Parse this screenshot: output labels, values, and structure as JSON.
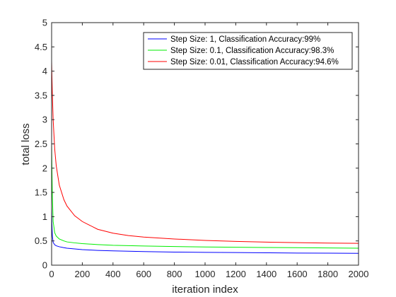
{
  "chart_data": {
    "type": "line",
    "title": "",
    "xlabel": "iteration index",
    "ylabel": "total loss",
    "xlim": [
      0,
      2000
    ],
    "ylim": [
      0,
      5
    ],
    "xticks": [
      0,
      200,
      400,
      600,
      800,
      1000,
      1200,
      1400,
      1600,
      1800,
      2000
    ],
    "yticks": [
      0,
      0.5,
      1,
      1.5,
      2,
      2.5,
      3,
      3.5,
      4,
      4.5,
      5
    ],
    "ytick_labels": [
      "0",
      "0.5",
      "1",
      "1.5",
      "2",
      "2.5",
      "3",
      "3.5",
      "4",
      "4.5",
      "5"
    ],
    "grid": false,
    "legend_position": "top-right",
    "series": [
      {
        "name": "Step Size: 1, Classification Accuracy:99%",
        "color": "#0000ff",
        "x": [
          0,
          2,
          5,
          10,
          20,
          30,
          50,
          80,
          100,
          150,
          200,
          300,
          400,
          600,
          800,
          1000,
          1200,
          1400,
          1600,
          1800,
          2000
        ],
        "y": [
          1.2,
          0.85,
          0.6,
          0.47,
          0.42,
          0.4,
          0.38,
          0.36,
          0.35,
          0.335,
          0.32,
          0.305,
          0.295,
          0.28,
          0.27,
          0.265,
          0.26,
          0.255,
          0.25,
          0.247,
          0.245
        ]
      },
      {
        "name": "Step Size: 0.1, Classification Accuracy:98.3%",
        "color": "#00ee00",
        "x": [
          0,
          2,
          5,
          10,
          20,
          30,
          50,
          80,
          100,
          150,
          200,
          300,
          400,
          600,
          800,
          1000,
          1200,
          1400,
          1600,
          1800,
          2000
        ],
        "y": [
          2.5,
          2.0,
          1.4,
          0.9,
          0.67,
          0.6,
          0.54,
          0.5,
          0.48,
          0.46,
          0.445,
          0.425,
          0.41,
          0.395,
          0.385,
          0.375,
          0.37,
          0.365,
          0.36,
          0.355,
          0.35
        ]
      },
      {
        "name": "Step Size: 0.01, Classification Accuracy:94.6%",
        "color": "#ff0000",
        "x": [
          0,
          2,
          5,
          10,
          20,
          30,
          50,
          80,
          100,
          150,
          200,
          300,
          400,
          500,
          600,
          800,
          1000,
          1200,
          1400,
          1600,
          1800,
          2000
        ],
        "y": [
          4.2,
          3.9,
          3.5,
          3.0,
          2.4,
          2.05,
          1.65,
          1.35,
          1.22,
          1.02,
          0.9,
          0.74,
          0.66,
          0.61,
          0.58,
          0.54,
          0.51,
          0.49,
          0.475,
          0.465,
          0.455,
          0.45
        ]
      }
    ]
  }
}
